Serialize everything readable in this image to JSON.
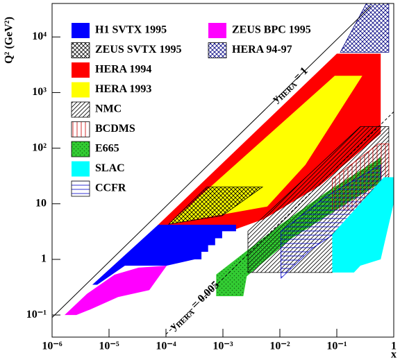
{
  "chart_data": {
    "type": "polygon",
    "x_label": "x",
    "y_label": "Q² (GeV²)",
    "xscale": "log",
    "yscale": "log",
    "xlim": [
      1e-06,
      1
    ],
    "ylim": [
      0.04,
      40000
    ],
    "xticks": [
      {
        "value": 1e-06,
        "label": "10⁻⁶"
      },
      {
        "value": 1e-05,
        "label": "10⁻⁵"
      },
      {
        "value": 0.0001,
        "label": "10⁻⁴"
      },
      {
        "value": 0.001,
        "label": "10⁻³"
      },
      {
        "value": 0.01,
        "label": "10⁻²"
      },
      {
        "value": 0.1,
        "label": "10⁻¹"
      },
      1
    ],
    "yticks": [
      {
        "value": 0.1,
        "label": "10⁻¹"
      },
      1,
      10,
      {
        "value": 100,
        "label": "10²"
      },
      {
        "value": 1000,
        "label": "10³"
      },
      {
        "value": 10000,
        "label": "10⁴"
      }
    ],
    "series": [
      {
        "name": "H1 SVTX 1995",
        "color": "#0000ff",
        "pattern": "solid",
        "x": [
          5.1e-06,
          7.3e-05,
          0.0017,
          0.0017,
          0.00097,
          0.00097,
          0.00073,
          0.00073,
          0.00055,
          0.00055,
          0.00042,
          0.00042,
          0.00032,
          0.000103,
          1.9e-05,
          6.2e-06
        ],
        "y": [
          0.35,
          4.2,
          4.2,
          3.2,
          3.2,
          2.4,
          2.4,
          1.8,
          1.8,
          1.37,
          1.37,
          1.0,
          1.0,
          0.77,
          0.77,
          0.35
        ]
      },
      {
        "name": "ZEUS SVTX 1995",
        "color": "#000000",
        "pattern": "crosshatch",
        "x": [
          0.000112,
          0.00052,
          0.00495,
          0.00097
        ],
        "y": [
          4.3,
          20,
          20,
          6.1
        ]
      },
      {
        "name": "HERA 1994",
        "color": "#ff0000",
        "pattern": "solid",
        "x": [
          7.3e-05,
          0.1,
          0.59,
          0.59,
          0.05,
          0.0052,
          0.0017,
          7.3e-05
        ],
        "y": [
          4.2,
          5000,
          5000,
          182,
          21,
          5.3,
          3.5,
          3.5
        ]
      },
      {
        "name": "HERA 1993",
        "color": "#ffff00",
        "pattern": "solid",
        "x": [
          0.000112,
          0.092,
          0.28,
          0.028,
          0.006
        ],
        "y": [
          4.3,
          2000,
          2000,
          50,
          8.9
        ]
      },
      {
        "name": "NMC",
        "color": "#000000",
        "pattern": "diagonal",
        "x": [
          0.00275,
          0.26,
          0.82,
          0.82,
          0.083,
          0.00275
        ],
        "y": [
          3.2,
          244,
          244,
          32,
          0.58,
          0.58
        ]
      },
      {
        "name": "BCDMS",
        "color": "#cc0000",
        "pattern": "vertical",
        "x": [
          0.083,
          0.083,
          0.54,
          0.82,
          0.82,
          0.47
        ],
        "y": [
          7.7,
          28,
          119,
          119,
          11.9,
          7.7
        ]
      },
      {
        "name": "E665",
        "color": "#33cc33",
        "pattern": "dots",
        "x": [
          0.00077,
          0.00077,
          0.0091,
          0.066,
          0.59,
          0.59,
          0.15,
          0.016,
          0.0026,
          0.00226
        ],
        "y": [
          0.22,
          0.53,
          3.8,
          16,
          67,
          24,
          10.3,
          2.4,
          0.5,
          0.22
        ]
      },
      {
        "name": "SLAC",
        "color": "#00ffff",
        "pattern": "solid",
        "x": [
          0.083,
          0.083,
          0.67,
          1,
          1,
          0.59,
          0.26,
          0.2
        ],
        "y": [
          0.58,
          2.8,
          30,
          30,
          10.3,
          1.0,
          0.77,
          0.58
        ]
      },
      {
        "name": "CCFR",
        "color": "#0000cc",
        "pattern": "horizontal",
        "x": [
          0.0105,
          0.0105,
          0.066,
          0.59,
          0.59,
          0.037
        ],
        "y": [
          0.46,
          3.2,
          13.7,
          50,
          10.3,
          1.58
        ]
      },
      {
        "name": "ZEUS BPC 1995",
        "color": "#ff00ff",
        "pattern": "solid",
        "x": [
          1.66e-06,
          4.1e-06,
          1.25e-05,
          3.3e-05,
          0.000103,
          5.1e-05,
          1.44e-05,
          4.7e-06,
          2.67e-06
        ],
        "y": [
          0.1,
          0.24,
          0.53,
          0.71,
          0.77,
          0.28,
          0.21,
          0.126,
          0.1
        ]
      },
      {
        "name": "HERA 94-97",
        "color": "#000080",
        "pattern": "crosshatch",
        "x": [
          0.115,
          0.33,
          0.82,
          0.82
        ],
        "y": [
          5300,
          40000,
          40000,
          5300
        ]
      }
    ],
    "lines": [
      {
        "symbol": "y",
        "subscript": "HERA",
        "text": "= 1",
        "style": "solid",
        "x": [
          1e-06,
          0.4
        ],
        "y": [
          0.09,
          36000
        ]
      },
      {
        "symbol": "y",
        "subscript": "HERA",
        "text": "= 0.005",
        "style": "dashed",
        "x": [
          0.0001,
          1
        ],
        "y": [
          0.045,
          451
        ]
      }
    ]
  }
}
